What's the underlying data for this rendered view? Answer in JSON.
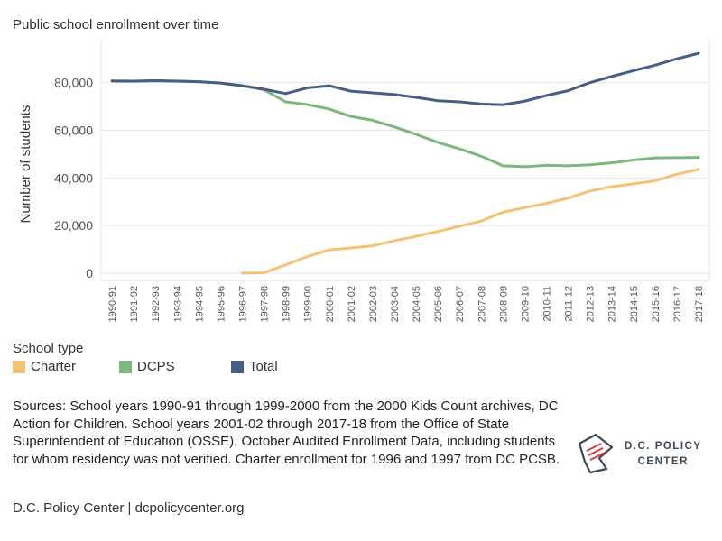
{
  "chart_data": {
    "type": "line",
    "title": "Public school enrollment over time",
    "ylabel": "Number of students",
    "xlabel": "",
    "ylim": [
      0,
      95000
    ],
    "yticks": [
      0,
      20000,
      40000,
      60000,
      80000
    ],
    "ytick_labels": [
      "0",
      "20,000",
      "40,000",
      "60,000",
      "80,000"
    ],
    "grid": true,
    "legend_position": "bottom-left",
    "legend_title": "School type",
    "categories": [
      "1990-91",
      "1991-92",
      "1992-93",
      "1993-94",
      "1994-95",
      "1995-96",
      "1996-97",
      "1997-98",
      "1998-99",
      "1999-00",
      "2000-01",
      "2001-02",
      "2002-03",
      "2003-04",
      "2004-05",
      "2005-06",
      "2006-07",
      "2007-08",
      "2008-09",
      "2009-10",
      "2010-11",
      "2011-12",
      "2012-13",
      "2013-14",
      "2014-15",
      "2015-16",
      "2016-17",
      "2017-18"
    ],
    "series": [
      {
        "name": "Charter",
        "color": "#f3c273",
        "values": [
          null,
          null,
          null,
          null,
          null,
          null,
          0,
          200,
          3500,
          7000,
          9800,
          10600,
          11500,
          13600,
          15500,
          17500,
          19700,
          21900,
          25600,
          27500,
          29300,
          31500,
          34500,
          36300,
          37500,
          38800,
          41500,
          43600
        ]
      },
      {
        "name": "DCPS",
        "color": "#7cb77e",
        "values": [
          80700,
          80600,
          80800,
          80600,
          80400,
          79800,
          78700,
          77000,
          71900,
          70800,
          68900,
          65800,
          64200,
          61400,
          58300,
          54900,
          52200,
          49100,
          45100,
          44700,
          45300,
          45100,
          45500,
          46300,
          47500,
          48400,
          48500,
          48600
        ]
      },
      {
        "name": "Total",
        "color": "#475e84",
        "values": [
          80700,
          80600,
          80800,
          80600,
          80400,
          79800,
          78700,
          77200,
          75400,
          77800,
          78700,
          76400,
          75700,
          75000,
          73800,
          72400,
          71900,
          71000,
          70700,
          72200,
          74600,
          76600,
          80000,
          82600,
          85000,
          87300,
          90000,
          92300
        ]
      }
    ]
  },
  "sources_text": "Sources: School years 1990-91 through 1999-2000 from the 2000 Kids Count archives, DC Action for Children.  School years 2001-02 through 2017-18 from the Office of State Superintendent of Education (OSSE), October Audited Enrollment Data, including students for whom residency was not verified. Charter enrollment for 1996 and 1997 from DC PCSB.",
  "footer_text": "D.C. Policy Center | dcpolicycenter.org",
  "logo": {
    "line1": "D.C. POLICY",
    "line2": "CENTER"
  },
  "colors": {
    "grid": "#e6e6e6",
    "axis_text": "#555555",
    "logo_navy": "#3a4a5c",
    "logo_red": "#d94040"
  }
}
